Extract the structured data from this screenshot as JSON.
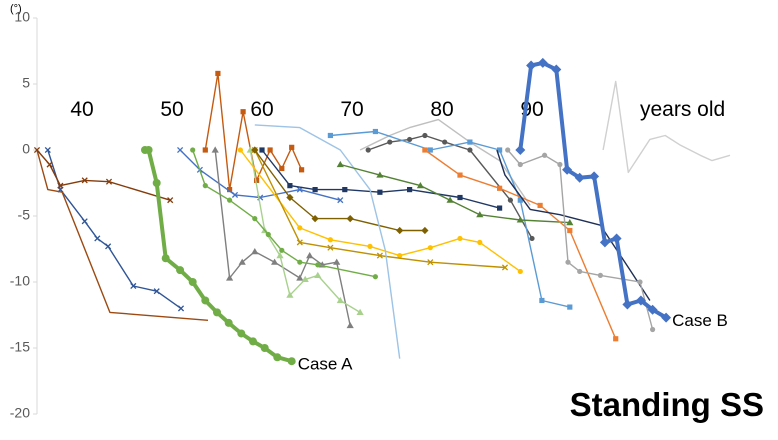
{
  "chart_data": {
    "type": "line",
    "title": "Standing SS",
    "y_unit": "(°)",
    "x_label": "years old",
    "xlim": [
      35,
      113
    ],
    "xticks": [
      40,
      50,
      60,
      70,
      80,
      90
    ],
    "ylim": [
      -20,
      10
    ],
    "yticks": [
      -20,
      -15,
      -10,
      -5,
      0,
      5,
      10
    ],
    "series": [
      {
        "color": "#2f5597",
        "marker": "x",
        "x": [
          36.2,
          37.6,
          40.3,
          41.7,
          42.9,
          45.7,
          48.3,
          51.0
        ],
        "values": [
          0,
          -3.0,
          -5.4,
          -6.7,
          -7.3,
          -10.3,
          -10.7,
          -12.0
        ]
      },
      {
        "color": "#9c4a12",
        "marker": "none",
        "x": [
          35,
          36.2,
          37.8,
          43.1,
          54.0
        ],
        "values": [
          0,
          -3.0,
          -3.2,
          -12.3,
          -12.9
        ]
      },
      {
        "color": "#843c0c",
        "marker": "x",
        "x": [
          35,
          36.4,
          37.6,
          40.3,
          43.0,
          49.8
        ],
        "values": [
          0,
          -1.1,
          -2.7,
          -2.3,
          -2.4,
          -3.8
        ]
      },
      {
        "color": "#c55a11",
        "marker": "square",
        "x": [
          53.7,
          55.1,
          56.4,
          57.9,
          59.4,
          60.9,
          62.2,
          63.3,
          64.4
        ],
        "values": [
          0,
          5.8,
          -3.0,
          2.9,
          -2.3,
          0,
          -1.4,
          0.2,
          -1.5
        ]
      },
      {
        "color": "#4472c4",
        "marker": "x",
        "x": [
          50.9,
          53.1,
          57.0,
          59.8,
          64.2,
          68.7
        ],
        "values": [
          0,
          -1.5,
          -3.4,
          -3.6,
          -3.0,
          -3.8
        ]
      },
      {
        "color": "#7f7f7f",
        "marker": "triangle",
        "x": [
          54.8,
          56.4,
          57.8,
          59.2,
          61.4,
          64.2,
          65.3,
          66.7,
          68.3,
          69.8
        ],
        "values": [
          0,
          -9.7,
          -8.5,
          -7.7,
          -8.5,
          -9.7,
          -8.0,
          -8.7,
          -8.5,
          -13.3
        ]
      },
      {
        "color": "#a9d18e",
        "marker": "triangle",
        "x": [
          58.7,
          60.3,
          62.0,
          63.1,
          64.8,
          66.2,
          68.7,
          70.9
        ],
        "values": [
          0,
          -6.1,
          -8.0,
          -11.0,
          -9.8,
          -9.5,
          -11.4,
          -12.3
        ]
      },
      {
        "color": "#70ad47",
        "marker": "circle",
        "x": [
          52.3,
          53.7,
          56.4,
          59.2,
          60.7,
          62.2,
          64.2,
          66.2,
          72.6
        ],
        "values": [
          0,
          -2.7,
          -3.8,
          -5.2,
          -6.4,
          -7.6,
          -8.5,
          -8.7,
          -9.6
        ]
      },
      {
        "color": "#ffc000",
        "marker": "circle",
        "x": [
          57.6,
          64.2,
          67.6,
          72.0,
          75.3,
          78.7,
          82.0,
          84.2,
          88.7
        ],
        "values": [
          0,
          -5.9,
          -6.8,
          -7.3,
          -8.0,
          -7.4,
          -6.7,
          -7.0,
          -9.2
        ]
      },
      {
        "color": "#bf9000",
        "marker": "x",
        "x": [
          59.2,
          64.2,
          67.6,
          73.1,
          78.7,
          87.0
        ],
        "values": [
          0,
          -7.0,
          -7.4,
          -8.0,
          -8.5,
          -8.9
        ]
      },
      {
        "color": "#7f6000",
        "marker": "diamond",
        "x": [
          59.2,
          63.1,
          65.9,
          69.8,
          75.3,
          78.1
        ],
        "values": [
          0,
          -3.6,
          -5.2,
          -5.2,
          -6.1,
          -6.1
        ]
      },
      {
        "color": "#203864",
        "marker": "square",
        "x": [
          60.0,
          63.1,
          65.9,
          69.2,
          73.1,
          76.4,
          82.0,
          86.4
        ],
        "values": [
          0,
          -2.7,
          -3.0,
          -3.0,
          -3.2,
          -3.0,
          -3.6,
          -4.4
        ]
      },
      {
        "color": "#9dc3e6",
        "marker": "none",
        "x": [
          59.2,
          64.2,
          68.7,
          72.0,
          73.7,
          75.3
        ],
        "values": [
          1.9,
          1.7,
          0,
          -3.0,
          -7.6,
          -15.8
        ]
      },
      {
        "color": "#bfbfbf",
        "marker": "none",
        "x": [
          70.9,
          74.2,
          76.4,
          79.6,
          83.1,
          86.4,
          89.8
        ],
        "values": [
          0,
          1.1,
          1.7,
          2.3,
          0.6,
          -0.8,
          -4.2
        ]
      },
      {
        "color": "#595959",
        "marker": "circle",
        "x": [
          71.8,
          74.2,
          76.4,
          78.1,
          80.3,
          83.1,
          87.6,
          90.0
        ],
        "values": [
          0,
          0.6,
          0.8,
          1.1,
          0.6,
          0,
          -3.8,
          -6.7
        ]
      },
      {
        "color": "#5b9bd5",
        "marker": "square",
        "x": [
          67.6,
          72.6,
          78.7,
          83.1,
          86.4,
          88.7,
          91.1,
          94.2
        ],
        "values": [
          1.1,
          1.4,
          0,
          0.6,
          0,
          -3.8,
          -11.4,
          -11.9
        ]
      },
      {
        "color": "#548235",
        "marker": "triangle",
        "x": [
          68.7,
          73.1,
          77.6,
          80.9,
          84.2,
          88.7,
          94.2
        ],
        "values": [
          -1.1,
          -1.9,
          -2.7,
          -3.8,
          -4.9,
          -5.3,
          -5.5
        ]
      },
      {
        "color": "#ed7d31",
        "marker": "square",
        "x": [
          78.1,
          82.0,
          86.4,
          90.9,
          94.2,
          99.3
        ],
        "values": [
          0,
          -1.9,
          -2.9,
          -4.2,
          -6.1,
          -14.3
        ]
      },
      {
        "color": "#1f2f55",
        "marker": "none",
        "x": [
          86.1,
          87.0,
          89.8,
          93.1,
          97.6,
          100.9,
          103.1
        ],
        "values": [
          0,
          -1.9,
          -4.5,
          -4.9,
          -5.7,
          -9.1,
          -11.4
        ]
      },
      {
        "color": "#a5a5a5",
        "marker": "circle",
        "x": [
          87.3,
          88.7,
          91.4,
          93.1,
          94.0,
          95.3,
          97.6,
          102.0,
          103.4
        ],
        "values": [
          0,
          -1.1,
          -0.4,
          -1.1,
          -8.5,
          -9.2,
          -9.5,
          -10.0,
          -13.6
        ]
      },
      {
        "color": "#d0d0d0",
        "marker": "none",
        "x": [
          97.9,
          99.3,
          100.7,
          103.1,
          104.8,
          106.4,
          108.7,
          110.0,
          112.0
        ],
        "values": [
          0,
          5.2,
          -1.7,
          0.8,
          1.1,
          0.4,
          -0.4,
          -0.8,
          -0.4
        ]
      },
      {
        "color": "#70ad47",
        "marker": "circle",
        "label": "Case A",
        "x": [
          47.0,
          47.4,
          48.3,
          49.3,
          50.9,
          52.3,
          53.7,
          55.0,
          56.3,
          57.7,
          59.0,
          60.3,
          61.7,
          63.3
        ],
        "values": [
          0,
          0,
          -2.5,
          -8.2,
          -9.1,
          -10.0,
          -11.4,
          -12.3,
          -13.1,
          -13.9,
          -14.5,
          -15.0,
          -15.7,
          -16.0
        ]
      },
      {
        "color": "#4472c4",
        "marker": "diamond",
        "label": "Case B",
        "x": [
          88.7,
          89.9,
          91.2,
          92.7,
          93.9,
          95.3,
          96.9,
          98.1,
          99.4,
          100.6,
          102.1,
          103.4,
          104.9
        ],
        "values": [
          0,
          6.4,
          6.6,
          6.1,
          -1.5,
          -2.1,
          -2.0,
          -7.0,
          -6.7,
          -11.7,
          -11.4,
          -12.1,
          -12.7
        ]
      }
    ]
  }
}
